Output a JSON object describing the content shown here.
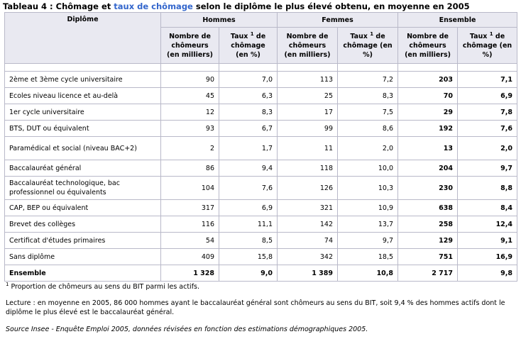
{
  "title": {
    "prefix": "Tableau 4 : Chômage et ",
    "link": "taux de chômage",
    "suffix": " selon le diplôme le plus élevé obtenu, en moyenne en 2005"
  },
  "header": {
    "diplome": "Diplôme",
    "groups": [
      "Hommes",
      "Femmes",
      "Ensemble"
    ],
    "col_nombre": "Nombre de chômeurs (en milliers)",
    "col_taux": "Taux",
    "col_taux_sup": "1",
    "col_taux_rest": " de chômage (en %)"
  },
  "rows": [
    {
      "label": "2ème et 3ème cycle universitaire",
      "h_n": "90",
      "h_t": "7,0",
      "f_n": "113",
      "f_t": "7,2",
      "e_n": "203",
      "e_t": "7,1"
    },
    {
      "label": "Ecoles niveau licence et au-delà",
      "h_n": "45",
      "h_t": "6,3",
      "f_n": "25",
      "f_t": "8,3",
      "e_n": "70",
      "e_t": "6,9"
    },
    {
      "label": "1er cycle universitaire",
      "h_n": "12",
      "h_t": "8,3",
      "f_n": "17",
      "f_t": "7,5",
      "e_n": "29",
      "e_t": "7,8"
    },
    {
      "label": "BTS, DUT ou équivalent",
      "h_n": "93",
      "h_t": "6,7",
      "f_n": "99",
      "f_t": "8,6",
      "e_n": "192",
      "e_t": "7,6"
    },
    {
      "label": "Paramédical et social (niveau BAC+2)",
      "h_n": "2",
      "h_t": "1,7",
      "f_n": "11",
      "f_t": "2,0",
      "e_n": "13",
      "e_t": "2,0"
    },
    {
      "label": "Baccalauréat général",
      "h_n": "86",
      "h_t": "9,4",
      "f_n": "118",
      "f_t": "10,0",
      "e_n": "204",
      "e_t": "9,7"
    },
    {
      "label": "Baccalauréat technologique, bac professionnel ou équivalents",
      "h_n": "104",
      "h_t": "7,6",
      "f_n": "126",
      "f_t": "10,3",
      "e_n": "230",
      "e_t": "8,8"
    },
    {
      "label": "CAP, BEP ou équivalent",
      "h_n": "317",
      "h_t": "6,9",
      "f_n": "321",
      "f_t": "10,9",
      "e_n": "638",
      "e_t": "8,4"
    },
    {
      "label": "Brevet des collèges",
      "h_n": "116",
      "h_t": "11,1",
      "f_n": "142",
      "f_t": "13,7",
      "e_n": "258",
      "e_t": "12,4"
    },
    {
      "label": "Certificat d'études primaires",
      "h_n": "54",
      "h_t": "8,5",
      "f_n": "74",
      "f_t": "9,7",
      "e_n": "129",
      "e_t": "9,1"
    },
    {
      "label": "Sans diplôme",
      "h_n": "409",
      "h_t": "15,8",
      "f_n": "342",
      "f_t": "18,5",
      "e_n": "751",
      "e_t": "16,9"
    },
    {
      "label": "Ensemble",
      "h_n": "1 328",
      "h_t": "9,0",
      "f_n": "1 389",
      "f_t": "10,8",
      "e_n": "2 717",
      "e_t": "9,8"
    }
  ],
  "notes": {
    "footnote_mark": "1",
    "footnote": " Proportion de chômeurs au sens du BIT parmi les actifs.",
    "lecture": "Lecture : en moyenne en 2005, 86 000 hommes ayant le baccalauréat général sont chômeurs au sens du BIT, soit 9,4 % des hommes actifs dont le diplôme le plus élevé est le baccalauréat général.",
    "source": "Source Insee - Enquête Emploi 2005, données révisées en fonction des estimations démographiques 2005."
  },
  "colors": {
    "link": "#3366cc",
    "header_bg": "#e9e9f1",
    "border": "#b9b9c9"
  }
}
